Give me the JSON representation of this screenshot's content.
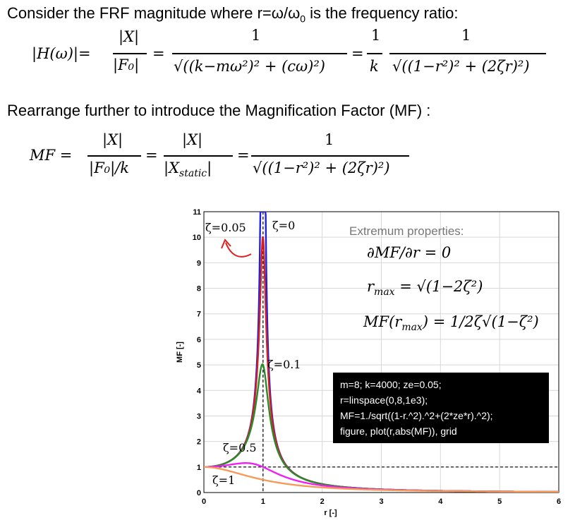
{
  "intro_text": "Consider the FRF magnitude where r=ω/ω",
  "intro_sub": "0",
  "intro_tail": " is the frequency ratio:",
  "frf_eq": {
    "lhs": "|H(ω)|=",
    "num1": "|X|",
    "den1": "|F₀|",
    "eq1": "=",
    "num2": "1",
    "den2": "√((k−mω²)² + (cω)²)",
    "eq2": "=",
    "num3": "1",
    "den3": "k",
    "num4": "1",
    "den4": "√((1−r²)² + (2ζr)²)"
  },
  "rearrange_text": "Rearrange further to introduce the Magnification Factor (MF) :",
  "mf_eq": {
    "lhs": "MF =",
    "num1": "|X|",
    "den1": "|F₀|/k",
    "eq1": "=",
    "num2": "|X|",
    "den2_main": "|X",
    "den2_sub": "static",
    "den2_end": "|",
    "eq2": "=",
    "num3": "1",
    "den3": "√((1−r²)² + (2ζr)²)"
  },
  "chart_data": {
    "type": "line",
    "xlabel": "r [-]",
    "ylabel": "MF [-]",
    "xlim": [
      0,
      6
    ],
    "ylim": [
      0,
      11
    ],
    "xticks": [
      "0",
      "1",
      "2",
      "3",
      "4",
      "5",
      "6"
    ],
    "yticks": [
      "0",
      "1",
      "2",
      "3",
      "4",
      "5",
      "6",
      "7",
      "8",
      "9",
      "10",
      "11"
    ],
    "grid": true,
    "series": [
      {
        "name": "ζ=0",
        "zeta": 0,
        "color": "#1f1fe0"
      },
      {
        "name": "ζ=0.05",
        "zeta": 0.05,
        "color": "#d42020"
      },
      {
        "name": "ζ=0.1",
        "zeta": 0.1,
        "color": "#2a8a2a"
      },
      {
        "name": "ζ=0.5",
        "zeta": 0.5,
        "color": "#ee22ee"
      },
      {
        "name": "ζ=1",
        "zeta": 1,
        "color": "#f59a5a"
      }
    ],
    "annotations": {
      "z005": "ζ=0.05",
      "z0": "ζ=0",
      "z01": "ζ=0.1",
      "z05": "ζ=0.5",
      "z1": "ζ=1"
    },
    "reference_lines": {
      "vertical_r": 1,
      "horizontal_mf": 1
    }
  },
  "extremum": {
    "title": "Extremum properties:",
    "line1": "∂MF/∂r = 0",
    "line2_lhs": "r",
    "line2_sub": "max",
    "line2_rhs": " = √(1−2ζ²)",
    "line3_lhs": "MF(r",
    "line3_sub": "max",
    "line3_rhs": ") = 1/2ζ√(1−ζ²)"
  },
  "code_lines": [
    "m=8; k=4000; ze=0.05;",
    "r=linspace(0,8,1e3);",
    "MF=1./sqrt((1-r.^2).^2+(2*ze*r).^2);",
    "figure, plot(r,abs(MF)), grid"
  ],
  "colors": {
    "arrow": "#e02020",
    "ref_line": "#000000"
  }
}
